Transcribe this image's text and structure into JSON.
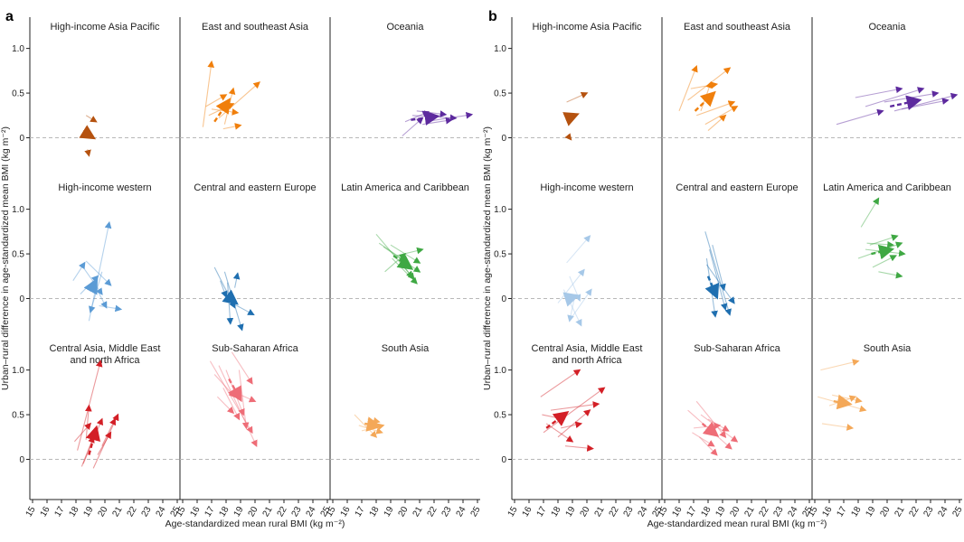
{
  "chart_data": {
    "type": "small-multiples-arrow-scatter",
    "panel_labels": [
      "a",
      "b"
    ],
    "ylabel": "Urban–rural difference in age-standardized mean BMI (kg m⁻²)",
    "xlabel": "Age-standardized mean rural BMI (kg m⁻²)",
    "xlim": [
      15,
      25
    ],
    "ylim": [
      -0.45,
      1.35
    ],
    "x_ticks": [
      "15",
      "16",
      "17",
      "18",
      "19",
      "20",
      "21",
      "22",
      "23",
      "24",
      "25"
    ],
    "y_ticks": [
      {
        "v": 0,
        "label": "0"
      },
      {
        "v": 0.5,
        "label": "0.5"
      },
      {
        "v": 1.0,
        "label": "1.0"
      }
    ],
    "reference_line_y": 0,
    "panels": [
      {
        "id": "a",
        "facets": [
          {
            "title": [
              "High-income Asia Pacific"
            ],
            "color": "#b5520f",
            "mean": [
              18.6,
              0.06,
              19.2,
              0.0
            ],
            "countries": [
              [
                18.7,
                0.25,
                19.4,
                0.18
              ],
              [
                18.8,
                -0.13,
                18.9,
                -0.2
              ],
              [
                18.5,
                0.08,
                19.1,
                0.02
              ]
            ]
          },
          {
            "title": [
              "East and southeast Asia"
            ],
            "color": "#f07f0c",
            "mean": [
              17.2,
              0.18,
              18.2,
              0.42
            ],
            "countries": [
              [
                16.4,
                0.12,
                17.0,
                0.85
              ],
              [
                16.8,
                0.25,
                18.5,
                0.38
              ],
              [
                17.5,
                0.22,
                20.3,
                0.62
              ],
              [
                17.0,
                0.32,
                18.8,
                0.28
              ],
              [
                17.9,
                0.15,
                18.5,
                0.55
              ],
              [
                16.6,
                0.35,
                18.0,
                0.48
              ],
              [
                17.8,
                0.1,
                19.0,
                0.14
              ]
            ]
          },
          {
            "title": [
              "Oceania"
            ],
            "color": "#5d2a9e",
            "mean": [
              20.4,
              0.2,
              22.2,
              0.24
            ],
            "countries": [
              [
                19.8,
                0.02,
                21.2,
                0.22
              ],
              [
                20.5,
                0.25,
                23.5,
                0.22
              ],
              [
                20.8,
                0.3,
                22.8,
                0.26
              ],
              [
                21.4,
                0.18,
                24.6,
                0.26
              ],
              [
                20.0,
                0.18,
                21.6,
                0.29
              ],
              [
                21.2,
                0.15,
                23.2,
                0.2
              ]
            ]
          },
          {
            "title": [
              "High-income western"
            ],
            "color": "#5b9bd5",
            "mean": [
              19.0,
              0.08,
              19.4,
              0.2
            ],
            "countries": [
              [
                17.8,
                0.2,
                18.6,
                0.4
              ],
              [
                18.9,
                -0.25,
                20.3,
                0.85
              ],
              [
                19.3,
                0.15,
                20.1,
                -0.1
              ],
              [
                18.5,
                0.35,
                19.8,
                0.05
              ],
              [
                19.6,
                -0.08,
                21.1,
                -0.12
              ],
              [
                18.3,
                0.05,
                19.5,
                0.25
              ],
              [
                19.8,
                0.3,
                19.0,
                -0.15
              ],
              [
                18.7,
                0.42,
                20.4,
                0.15
              ]
            ]
          },
          {
            "title": [
              "Central and eastern Europe"
            ],
            "color": "#1f6fb0",
            "mean": [
              17.9,
              0.05,
              18.7,
              -0.05
            ],
            "countries": [
              [
                17.2,
                0.35,
                18.6,
                -0.1
              ],
              [
                17.9,
                0.3,
                19.1,
                -0.35
              ],
              [
                18.1,
                0.18,
                18.3,
                -0.28
              ],
              [
                18.4,
                -0.05,
                19.9,
                -0.18
              ],
              [
                17.6,
                0.2,
                18.0,
                0.02
              ],
              [
                18.6,
                0.12,
                18.8,
                0.28
              ]
            ]
          },
          {
            "title": [
              "Latin America and Caribbean"
            ],
            "color": "#3fa843",
            "mean": [
              19.2,
              0.48,
              20.4,
              0.34
            ],
            "countries": [
              [
                18.0,
                0.72,
                20.5,
                0.24
              ],
              [
                18.5,
                0.58,
                21.0,
                0.3
              ],
              [
                19.4,
                0.48,
                21.2,
                0.55
              ],
              [
                18.2,
                0.62,
                20.0,
                0.42
              ],
              [
                19.1,
                0.45,
                20.8,
                0.17
              ],
              [
                18.6,
                0.3,
                20.0,
                0.5
              ],
              [
                19.0,
                0.6,
                21.0,
                0.4
              ],
              [
                19.8,
                0.38,
                20.6,
                0.22
              ]
            ]
          },
          {
            "title": [
              "Central Asia, Middle East",
              "and north Africa"
            ],
            "color": "#d31f26",
            "mean": [
              18.9,
              0.05,
              19.4,
              0.35
            ],
            "countries": [
              [
                18.1,
                0.1,
                19.7,
                1.1
              ],
              [
                18.5,
                -0.05,
                19.8,
                0.45
              ],
              [
                19.2,
                -0.1,
                20.9,
                0.5
              ],
              [
                17.9,
                0.2,
                19.0,
                0.4
              ],
              [
                19.5,
                0.05,
                20.4,
                0.3
              ],
              [
                18.7,
                0.22,
                18.9,
                0.6
              ],
              [
                18.4,
                -0.08,
                19.2,
                0.25
              ],
              [
                19.8,
                0.15,
                20.7,
                0.45
              ]
            ]
          },
          {
            "title": [
              "Sub-Saharan Africa"
            ],
            "color": "#ee6d77",
            "mean": [
              18.2,
              0.9,
              19.0,
              0.67
            ],
            "countries": [
              [
                16.9,
                1.1,
                19.8,
                0.3
              ],
              [
                17.5,
                1.05,
                20.1,
                0.15
              ],
              [
                18.0,
                1.0,
                19.2,
                0.5
              ],
              [
                17.2,
                0.95,
                18.6,
                0.7
              ],
              [
                18.4,
                1.2,
                19.8,
                0.85
              ],
              [
                17.8,
                0.8,
                18.9,
                0.45
              ],
              [
                18.6,
                0.75,
                20.0,
                0.65
              ],
              [
                17.4,
                0.7,
                18.5,
                0.52
              ],
              [
                18.9,
                1.0,
                19.4,
                0.35
              ]
            ]
          },
          {
            "title": [
              "South Asia"
            ],
            "color": "#f4a858",
            "mean": [
              17.2,
              0.4,
              18.2,
              0.37
            ],
            "countries": [
              [
                16.5,
                0.5,
                18.0,
                0.25
              ],
              [
                17.0,
                0.32,
                18.5,
                0.38
              ],
              [
                16.8,
                0.38,
                18.4,
                0.3
              ],
              [
                17.4,
                0.45,
                18.2,
                0.42
              ]
            ]
          }
        ]
      },
      {
        "id": "b",
        "facets": [
          {
            "title": [
              "High-income Asia Pacific"
            ],
            "color": "#b5520f",
            "mean": [
              18.7,
              0.22,
              19.3,
              0.26
            ],
            "countries": [
              [
                18.6,
                0.4,
                20.0,
                0.5
              ],
              [
                18.8,
                0.0,
                18.9,
                -0.02
              ]
            ]
          },
          {
            "title": [
              "East and southeast Asia"
            ],
            "color": "#f07f0c",
            "mean": [
              17.1,
              0.3,
              18.4,
              0.5
            ],
            "countries": [
              [
                16.0,
                0.3,
                17.2,
                0.8
              ],
              [
                16.6,
                0.42,
                19.5,
                0.78
              ],
              [
                17.2,
                0.25,
                19.8,
                0.4
              ],
              [
                17.8,
                0.15,
                20.0,
                0.35
              ],
              [
                16.8,
                0.55,
                18.6,
                0.6
              ],
              [
                17.5,
                0.3,
                18.2,
                0.62
              ],
              [
                18.0,
                0.08,
                19.2,
                0.25
              ]
            ]
          },
          {
            "title": [
              "Oceania"
            ],
            "color": "#5d2a9e",
            "mean": [
              20.2,
              0.35,
              22.2,
              0.42
            ],
            "countries": [
              [
                16.5,
                0.15,
                19.7,
                0.3
              ],
              [
                18.5,
                0.35,
                22.5,
                0.55
              ],
              [
                17.8,
                0.45,
                21.0,
                0.55
              ],
              [
                20.5,
                0.3,
                24.8,
                0.48
              ],
              [
                19.8,
                0.4,
                23.5,
                0.5
              ],
              [
                21.0,
                0.32,
                24.2,
                0.42
              ]
            ]
          },
          {
            "title": [
              "High-income western"
            ],
            "color": "#a6c8e8",
            "mean": [
              18.7,
              0.0,
              19.3,
              0.03
            ],
            "countries": [
              [
                18.6,
                0.4,
                20.2,
                0.7
              ],
              [
                18.0,
                -0.05,
                19.8,
                0.32
              ],
              [
                19.0,
                -0.2,
                20.3,
                0.1
              ],
              [
                18.4,
                0.1,
                19.6,
                -0.3
              ],
              [
                19.2,
                0.05,
                18.8,
                -0.25
              ],
              [
                18.8,
                0.25,
                19.5,
                -0.02
              ]
            ]
          },
          {
            "title": [
              "Central and eastern Europe"
            ],
            "color": "#1f6fb0",
            "mean": [
              18.0,
              0.25,
              18.6,
              0.02
            ],
            "countries": [
              [
                17.8,
                0.75,
                19.5,
                -0.18
              ],
              [
                18.1,
                0.55,
                19.2,
                -0.12
              ],
              [
                17.9,
                0.38,
                19.8,
                -0.05
              ],
              [
                18.3,
                0.6,
                19.1,
                0.1
              ],
              [
                17.9,
                0.45,
                18.5,
                -0.2
              ]
            ]
          },
          {
            "title": [
              "Latin America and Caribbean"
            ],
            "color": "#3fa843",
            "mean": [
              18.9,
              0.5,
              20.3,
              0.55
            ],
            "countries": [
              [
                18.2,
                0.8,
                19.4,
                1.12
              ],
              [
                18.0,
                0.45,
                21.0,
                0.62
              ],
              [
                18.6,
                0.62,
                20.4,
                0.6
              ],
              [
                19.0,
                0.35,
                20.6,
                0.48
              ],
              [
                18.5,
                0.55,
                21.2,
                0.5
              ],
              [
                19.4,
                0.3,
                21.0,
                0.25
              ],
              [
                18.8,
                0.6,
                20.7,
                0.7
              ]
            ]
          },
          {
            "title": [
              "Central Asia, Middle East",
              "and north Africa"
            ],
            "color": "#d31f26",
            "mean": [
              17.2,
              0.35,
              18.6,
              0.52
            ],
            "countries": [
              [
                16.8,
                0.7,
                19.5,
                1.0
              ],
              [
                17.0,
                0.3,
                21.2,
                0.8
              ],
              [
                18.0,
                0.25,
                20.2,
                0.55
              ],
              [
                17.5,
                0.55,
                20.8,
                0.62
              ],
              [
                17.2,
                0.4,
                19.0,
                0.2
              ],
              [
                18.5,
                0.15,
                20.4,
                0.12
              ],
              [
                16.9,
                0.5,
                18.4,
                0.45
              ],
              [
                18.2,
                0.35,
                19.6,
                0.4
              ]
            ]
          },
          {
            "title": [
              "Sub-Saharan Africa"
            ],
            "color": "#ee6d77",
            "mean": [
              17.6,
              0.4,
              18.6,
              0.27
            ],
            "countries": [
              [
                16.6,
                0.55,
                19.6,
                0.12
              ],
              [
                17.0,
                0.35,
                18.8,
                0.38
              ],
              [
                17.2,
                0.65,
                19.2,
                0.25
              ],
              [
                17.5,
                0.5,
                20.0,
                0.2
              ],
              [
                16.9,
                0.3,
                18.4,
                0.15
              ],
              [
                18.0,
                0.45,
                19.4,
                0.32
              ],
              [
                17.4,
                0.25,
                18.6,
                0.05
              ]
            ]
          },
          {
            "title": [
              "South Asia"
            ],
            "color": "#f4a858",
            "mean": [
              16.3,
              0.65,
              17.4,
              0.62
            ],
            "countries": [
              [
                15.4,
                1.0,
                18.0,
                1.1
              ],
              [
                15.2,
                0.7,
                18.5,
                0.55
              ],
              [
                16.0,
                0.6,
                17.8,
                0.7
              ],
              [
                15.5,
                0.4,
                17.6,
                0.35
              ],
              [
                16.2,
                0.72,
                18.2,
                0.65
              ]
            ]
          }
        ]
      }
    ]
  }
}
